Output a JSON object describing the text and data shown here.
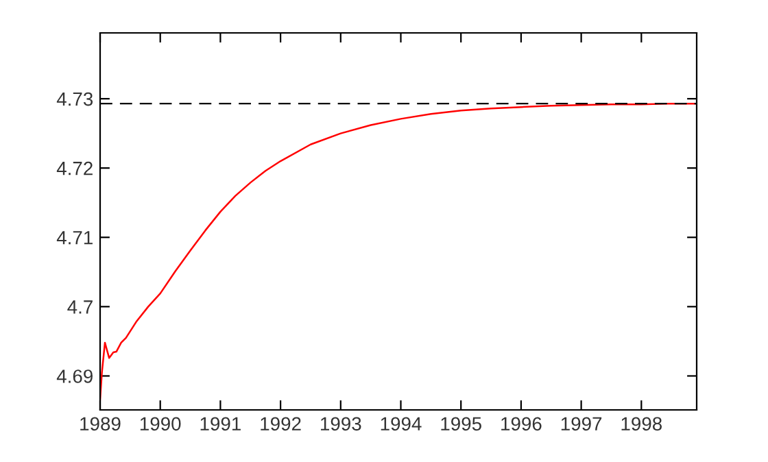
{
  "chart_data": {
    "type": "line",
    "x": [
      1989,
      1989.03,
      1989.08,
      1989.15,
      1989.22,
      1989.27,
      1989.35,
      1989.43,
      1989.6,
      1989.8,
      1990,
      1990.25,
      1990.5,
      1990.75,
      1991,
      1991.25,
      1991.5,
      1991.75,
      1992,
      1992.5,
      1993,
      1993.5,
      1994,
      1994.5,
      1995,
      1995.5,
      1996,
      1996.5,
      1997,
      1997.5,
      1998,
      1998.5,
      1998.92
    ],
    "series": [
      {
        "color": "#ff0000",
        "values": [
          4.6866,
          4.6905,
          4.6948,
          4.6926,
          4.6934,
          4.6935,
          4.6948,
          4.6955,
          4.6978,
          4.7,
          4.7019,
          4.7051,
          4.7081,
          4.711,
          4.7137,
          4.716,
          4.7179,
          4.7196,
          4.721,
          4.7234,
          4.725,
          4.7262,
          4.7271,
          4.7278,
          4.7283,
          4.7286,
          4.7288,
          4.729,
          4.7291,
          4.7292,
          4.7292,
          4.7293,
          4.7293
        ]
      }
    ],
    "xlim": [
      1989,
      1998.92
    ],
    "ylim": [
      4.6851,
      4.7395
    ],
    "xticks": [
      1989,
      1990,
      1991,
      1992,
      1993,
      1994,
      1995,
      1996,
      1997,
      1998
    ],
    "yticks": [
      4.69,
      {
        "value": 4.7,
        "label": "4.7"
      },
      4.71,
      4.72,
      4.73
    ],
    "ref_lines": [
      {
        "axis": "y",
        "value": 4.7293,
        "color": "#000000",
        "line_style": "dashed"
      }
    ],
    "grid": false,
    "legend": false,
    "marker": "none",
    "line_style": "solid"
  }
}
